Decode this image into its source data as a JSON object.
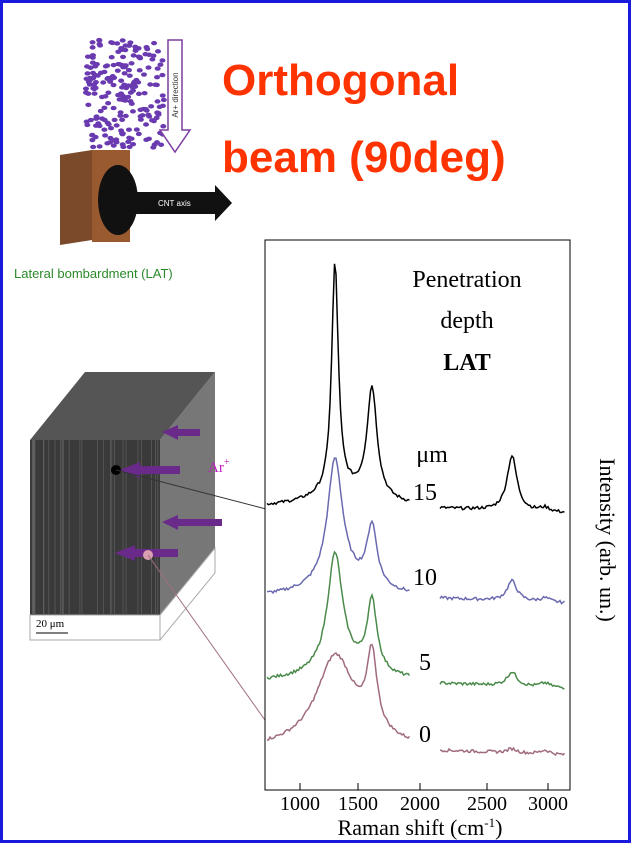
{
  "title": {
    "line1": "Orthogonal",
    "line2": "beam (90deg)"
  },
  "illustration": {
    "direction_label": "Ar+ direction",
    "axis_label": "CNT axis",
    "caption": "Lateral bombardment (LAT)"
  },
  "sample": {
    "ion_label": {
      "base": "Ar",
      "sup": "+"
    },
    "scale_label": "20 μm"
  },
  "spectra": {
    "legend": {
      "line1": "Penetration",
      "line2": "depth",
      "line3": "LAT"
    },
    "unit": "μm",
    "depths": [
      "15",
      "10",
      "5",
      "0"
    ],
    "x_ticks": [
      "1000",
      "1500",
      "2000",
      "2500",
      "3000"
    ],
    "x_label": {
      "base": "Raman shift (cm",
      "sup": "-1",
      "end": ")"
    },
    "y_label": "Intensity (arb. un.)"
  }
}
